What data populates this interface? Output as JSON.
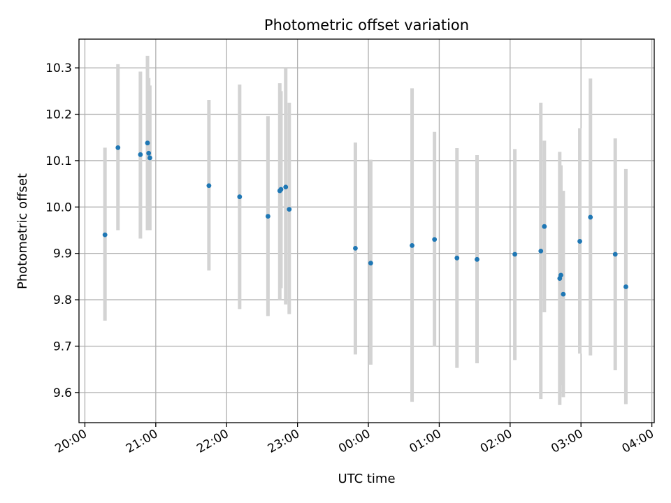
{
  "chart_data": {
    "type": "scatter",
    "title": "Photometric offset variation",
    "xlabel": "UTC time",
    "ylabel": "Photometric offset",
    "x_axis": {
      "kind": "time",
      "ticks": [
        "20:00",
        "21:00",
        "22:00",
        "23:00",
        "00:00",
        "01:00",
        "02:00",
        "03:00",
        "04:00"
      ],
      "range": [
        "19:55",
        "04:02"
      ]
    },
    "y_axis": {
      "ticks": [
        "9.6",
        "9.7",
        "9.8",
        "9.9",
        "10.0",
        "10.1",
        "10.2",
        "10.3"
      ],
      "range": [
        9.535,
        10.362
      ]
    },
    "grid": true,
    "colors": {
      "point": "#1f77b4",
      "errorbar": "#d3d3d3",
      "grid": "#b0b0b0"
    },
    "points": [
      {
        "t": "20:17",
        "y": 9.94,
        "lo": 9.755,
        "hi": 10.128
      },
      {
        "t": "20:28",
        "y": 10.128,
        "lo": 9.95,
        "hi": 10.308
      },
      {
        "t": "20:47",
        "y": 10.113,
        "lo": 9.932,
        "hi": 10.292
      },
      {
        "t": "20:53",
        "y": 10.138,
        "lo": 9.95,
        "hi": 10.326
      },
      {
        "t": "20:54",
        "y": 10.116,
        "lo": 9.955,
        "hi": 10.278
      },
      {
        "t": "20:55",
        "y": 10.106,
        "lo": 9.95,
        "hi": 10.262
      },
      {
        "t": "21:45",
        "y": 10.046,
        "lo": 9.863,
        "hi": 10.231
      },
      {
        "t": "22:11",
        "y": 10.022,
        "lo": 9.78,
        "hi": 10.264
      },
      {
        "t": "22:35",
        "y": 9.98,
        "lo": 9.765,
        "hi": 10.196
      },
      {
        "t": "22:45",
        "y": 10.035,
        "lo": 9.8,
        "hi": 10.267
      },
      {
        "t": "22:46",
        "y": 10.038,
        "lo": 9.825,
        "hi": 10.25
      },
      {
        "t": "22:50",
        "y": 10.043,
        "lo": 9.79,
        "hi": 10.3
      },
      {
        "t": "22:53",
        "y": 9.995,
        "lo": 9.769,
        "hi": 10.225
      },
      {
        "t": "23:49",
        "y": 9.911,
        "lo": 9.682,
        "hi": 10.139
      },
      {
        "t": "00:02",
        "y": 9.879,
        "lo": 9.66,
        "hi": 10.102
      },
      {
        "t": "00:37",
        "y": 9.917,
        "lo": 9.58,
        "hi": 10.256
      },
      {
        "t": "00:56",
        "y": 9.93,
        "lo": 9.7,
        "hi": 10.162
      },
      {
        "t": "01:15",
        "y": 9.89,
        "lo": 9.653,
        "hi": 10.127
      },
      {
        "t": "01:32",
        "y": 9.887,
        "lo": 9.663,
        "hi": 10.112
      },
      {
        "t": "02:04",
        "y": 9.898,
        "lo": 9.67,
        "hi": 10.125
      },
      {
        "t": "02:26",
        "y": 9.905,
        "lo": 9.586,
        "hi": 10.225
      },
      {
        "t": "02:29",
        "y": 9.958,
        "lo": 9.773,
        "hi": 10.143
      },
      {
        "t": "02:42",
        "y": 9.846,
        "lo": 9.573,
        "hi": 10.119
      },
      {
        "t": "02:43",
        "y": 9.853,
        "lo": 9.616,
        "hi": 10.09
      },
      {
        "t": "02:45",
        "y": 9.812,
        "lo": 9.59,
        "hi": 10.035
      },
      {
        "t": "02:59",
        "y": 9.926,
        "lo": 9.684,
        "hi": 10.17
      },
      {
        "t": "03:08",
        "y": 9.978,
        "lo": 9.68,
        "hi": 10.277
      },
      {
        "t": "03:29",
        "y": 9.898,
        "lo": 9.648,
        "hi": 10.148
      },
      {
        "t": "03:38",
        "y": 9.828,
        "lo": 9.575,
        "hi": 10.082
      }
    ]
  }
}
